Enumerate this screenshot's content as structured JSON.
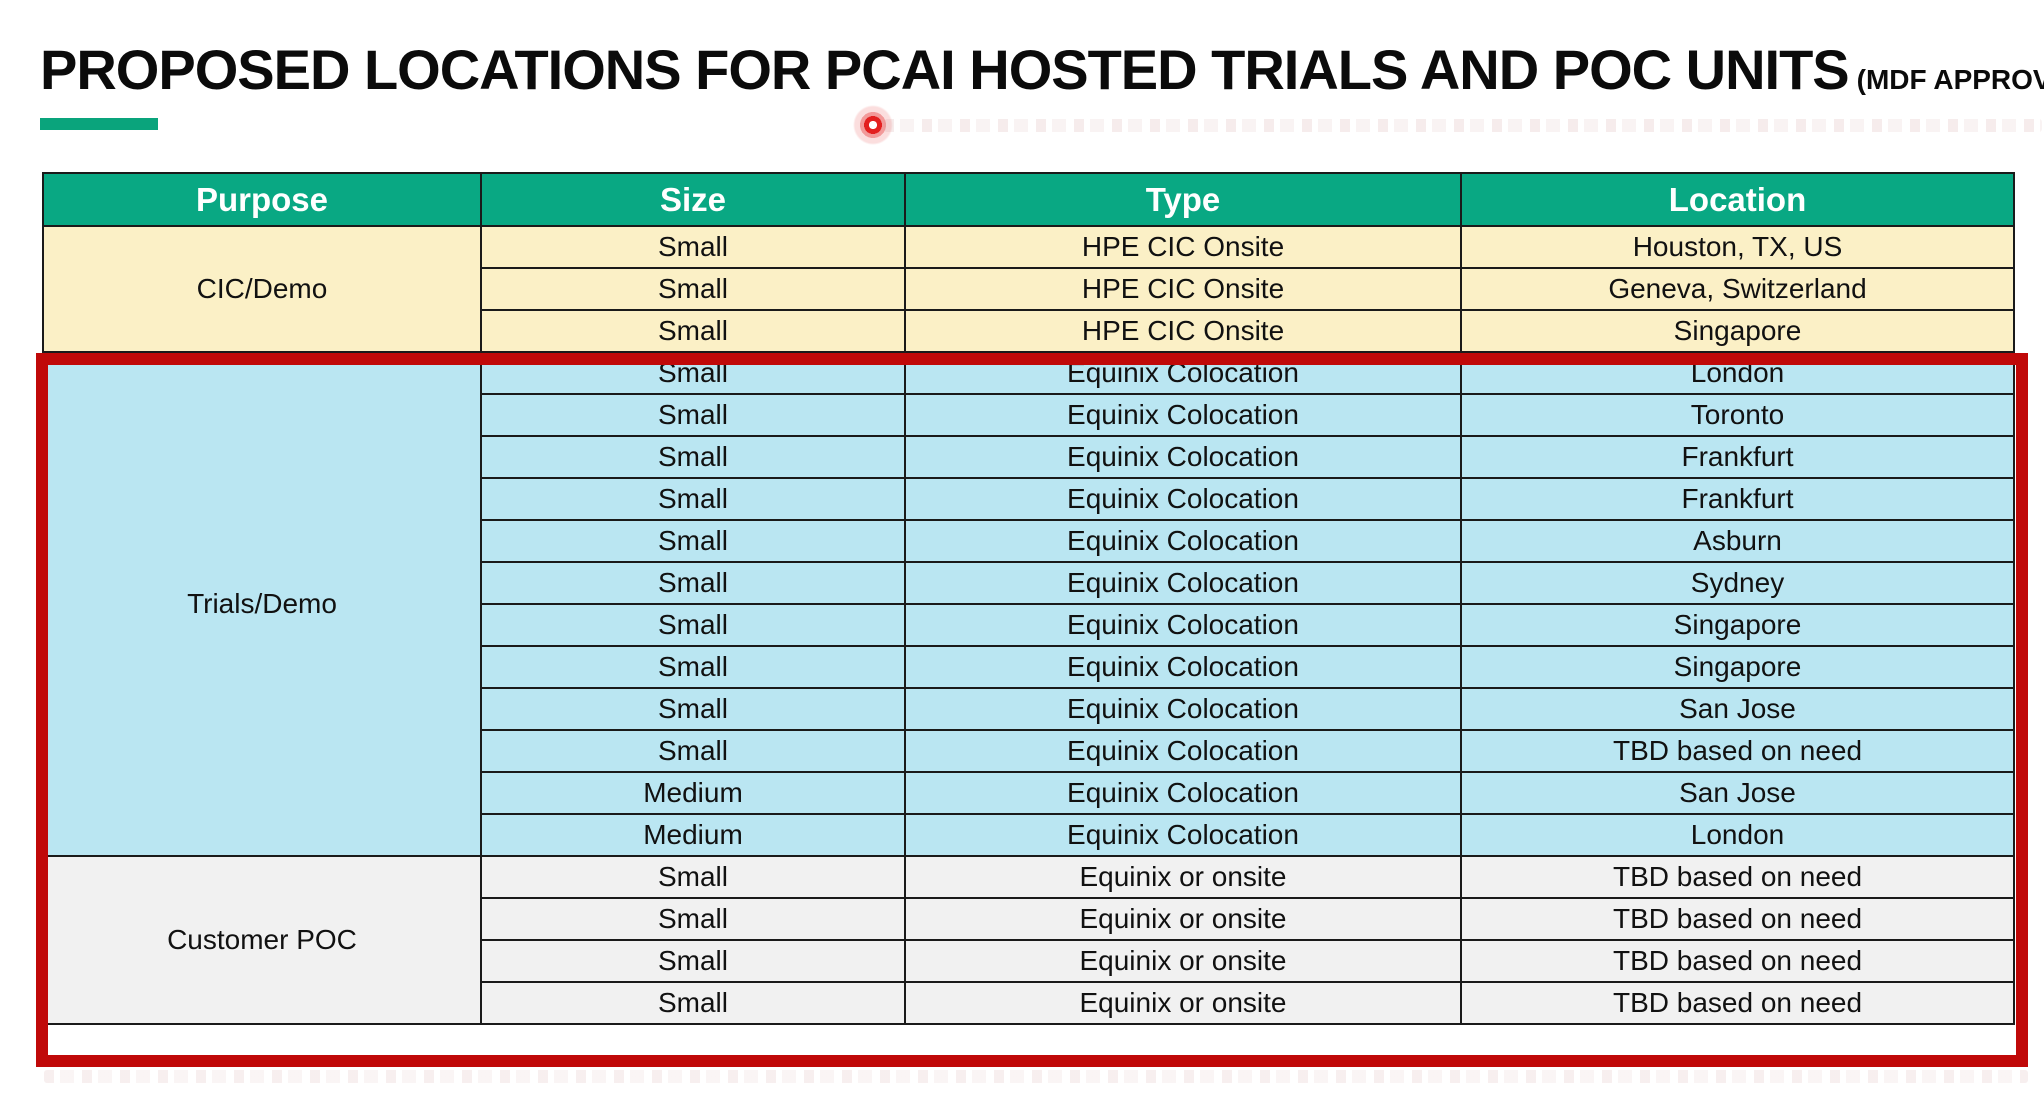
{
  "title": {
    "main": "PROPOSED LOCATIONS FOR PCAI HOSTED TRIALS AND POC UNITS",
    "suffix": "(MDF APPROVED)"
  },
  "colors": {
    "accent_green": "#0AA47C",
    "header_green": "#09A883",
    "red": "#C00909",
    "grid": "#1A1A1A",
    "text": "#111111",
    "cic_yellow": "#FBF0C6",
    "trials_blue": "#BAE6F2",
    "poc_gray": "#F1F1F1"
  },
  "annotations": {
    "laser_pointer_dot": "red laser pointer dot under title",
    "highlight_note": "thick red rectangle around Trials/Demo and Customer POC sections"
  },
  "table": {
    "headers": [
      "Purpose",
      "Size",
      "Type",
      "Location"
    ],
    "sections": [
      {
        "purpose": "CIC/Demo",
        "row_color": "#FBF0C6",
        "highlighted": false,
        "rows": [
          {
            "size": "Small",
            "type": "HPE CIC Onsite",
            "location": "Houston, TX, US"
          },
          {
            "size": "Small",
            "type": "HPE CIC Onsite",
            "location": "Geneva, Switzerland"
          },
          {
            "size": "Small",
            "type": "HPE CIC Onsite",
            "location": "Singapore"
          }
        ]
      },
      {
        "purpose": "Trials/Demo",
        "row_color": "#BAE6F2",
        "highlighted": true,
        "rows": [
          {
            "size": "Small",
            "type": "Equinix Colocation",
            "location": "London"
          },
          {
            "size": "Small",
            "type": "Equinix Colocation",
            "location": "Toronto"
          },
          {
            "size": "Small",
            "type": "Equinix Colocation",
            "location": "Frankfurt"
          },
          {
            "size": "Small",
            "type": "Equinix Colocation",
            "location": "Frankfurt"
          },
          {
            "size": "Small",
            "type": "Equinix Colocation",
            "location": "Asburn"
          },
          {
            "size": "Small",
            "type": "Equinix Colocation",
            "location": "Sydney"
          },
          {
            "size": "Small",
            "type": "Equinix Colocation",
            "location": "Singapore"
          },
          {
            "size": "Small",
            "type": "Equinix Colocation",
            "location": "Singapore"
          },
          {
            "size": "Small",
            "type": "Equinix Colocation",
            "location": "San Jose"
          },
          {
            "size": "Small",
            "type": "Equinix Colocation",
            "location": "TBD based on need"
          },
          {
            "size": "Medium",
            "type": "Equinix Colocation",
            "location": "San Jose"
          },
          {
            "size": "Medium",
            "type": "Equinix Colocation",
            "location": "London"
          }
        ]
      },
      {
        "purpose": "Customer POC",
        "row_color": "#F1F1F1",
        "highlighted": true,
        "rows": [
          {
            "size": "Small",
            "type": "Equinix or onsite",
            "location": "TBD based on need"
          },
          {
            "size": "Small",
            "type": "Equinix or onsite",
            "location": "TBD based on need"
          },
          {
            "size": "Small",
            "type": "Equinix or onsite",
            "location": "TBD based on need"
          },
          {
            "size": "Small",
            "type": "Equinix or onsite",
            "location": "TBD based on need"
          }
        ]
      }
    ]
  }
}
